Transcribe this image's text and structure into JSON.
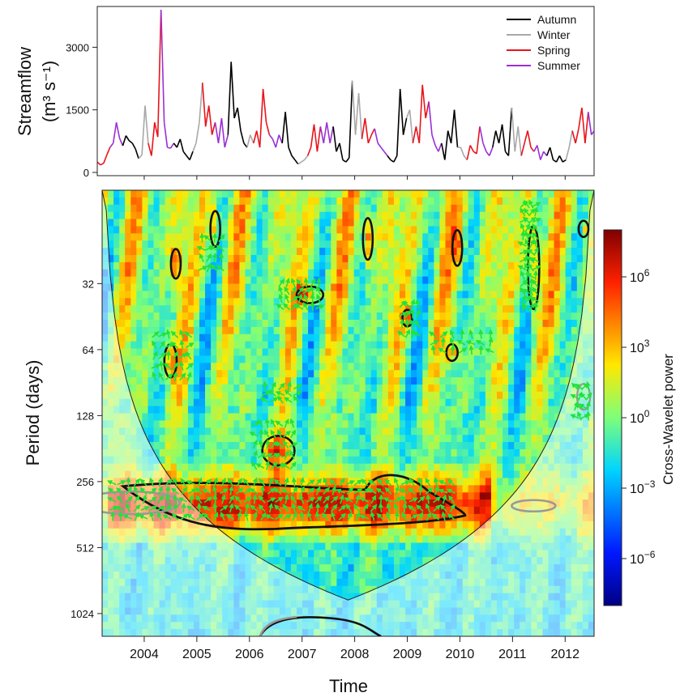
{
  "chart_data": [
    {
      "type": "line",
      "ylabel_line1": "Streamflow",
      "ylabel_line2": "(m³ s⁻¹)",
      "ylim": [
        0,
        3900
      ],
      "yticks": [
        "0",
        "1500",
        "3000"
      ],
      "ytick_values": [
        0,
        1500,
        3000
      ],
      "xlim": [
        2003.2,
        2012.55
      ],
      "legend_position": "top-right",
      "series": [
        {
          "name": "Autumn",
          "color": "#000000"
        },
        {
          "name": "Winter",
          "color": "#a8a8a8"
        },
        {
          "name": "Spring",
          "color": "#e8141b"
        },
        {
          "name": "Summer",
          "color": "#9a2fd6"
        }
      ],
      "flow": [
        [
          2003.2,
          250
        ],
        [
          2003.26,
          180
        ],
        [
          2003.32,
          220
        ],
        [
          2003.38,
          420
        ],
        [
          2003.44,
          600
        ],
        [
          2003.5,
          700
        ],
        [
          2003.56,
          1200
        ],
        [
          2003.62,
          820
        ],
        [
          2003.68,
          640
        ],
        [
          2003.74,
          880
        ],
        [
          2003.8,
          760
        ],
        [
          2003.86,
          700
        ],
        [
          2003.92,
          560
        ],
        [
          2003.98,
          330
        ],
        [
          2004.04,
          420
        ],
        [
          2004.1,
          1600
        ],
        [
          2004.16,
          700
        ],
        [
          2004.22,
          400
        ],
        [
          2004.28,
          1200
        ],
        [
          2004.34,
          850
        ],
        [
          2004.4,
          3900
        ],
        [
          2004.46,
          1200
        ],
        [
          2004.52,
          600
        ],
        [
          2004.58,
          580
        ],
        [
          2004.64,
          700
        ],
        [
          2004.7,
          600
        ],
        [
          2004.76,
          800
        ],
        [
          2004.82,
          500
        ],
        [
          2004.88,
          400
        ],
        [
          2004.94,
          300
        ],
        [
          2005.0,
          500
        ],
        [
          2005.06,
          700
        ],
        [
          2005.12,
          1200
        ],
        [
          2005.18,
          2150
        ],
        [
          2005.24,
          1100
        ],
        [
          2005.3,
          1600
        ],
        [
          2005.36,
          900
        ],
        [
          2005.42,
          1200
        ],
        [
          2005.48,
          700
        ],
        [
          2005.54,
          1300
        ],
        [
          2005.6,
          600
        ],
        [
          2005.66,
          900
        ],
        [
          2005.72,
          2650
        ],
        [
          2005.78,
          1300
        ],
        [
          2005.84,
          1550
        ],
        [
          2005.9,
          1000
        ],
        [
          2005.96,
          700
        ],
        [
          2006.02,
          600
        ],
        [
          2006.08,
          900
        ],
        [
          2006.14,
          700
        ],
        [
          2006.2,
          1000
        ],
        [
          2006.26,
          600
        ],
        [
          2006.32,
          2000
        ],
        [
          2006.38,
          1200
        ],
        [
          2006.44,
          900
        ],
        [
          2006.5,
          800
        ],
        [
          2006.56,
          600
        ],
        [
          2006.62,
          900
        ],
        [
          2006.68,
          700
        ],
        [
          2006.74,
          1450
        ],
        [
          2006.8,
          600
        ],
        [
          2006.86,
          400
        ],
        [
          2006.92,
          300
        ],
        [
          2006.98,
          200
        ],
        [
          2007.04,
          250
        ],
        [
          2007.1,
          300
        ],
        [
          2007.16,
          400
        ],
        [
          2007.22,
          600
        ],
        [
          2007.28,
          1150
        ],
        [
          2007.34,
          500
        ],
        [
          2007.4,
          1100
        ],
        [
          2007.46,
          700
        ],
        [
          2007.52,
          1200
        ],
        [
          2007.58,
          700
        ],
        [
          2007.64,
          1100
        ],
        [
          2007.7,
          500
        ],
        [
          2007.76,
          700
        ],
        [
          2007.82,
          300
        ],
        [
          2007.88,
          250
        ],
        [
          2007.94,
          350
        ],
        [
          2008.0,
          2200
        ],
        [
          2008.06,
          900
        ],
        [
          2008.12,
          1900
        ],
        [
          2008.18,
          800
        ],
        [
          2008.24,
          1300
        ],
        [
          2008.3,
          700
        ],
        [
          2008.36,
          900
        ],
        [
          2008.42,
          1050
        ],
        [
          2008.48,
          700
        ],
        [
          2008.54,
          600
        ],
        [
          2008.6,
          500
        ],
        [
          2008.66,
          400
        ],
        [
          2008.72,
          300
        ],
        [
          2008.78,
          250
        ],
        [
          2008.84,
          400
        ],
        [
          2008.9,
          2000
        ],
        [
          2008.96,
          900
        ],
        [
          2009.02,
          1300
        ],
        [
          2009.08,
          1500
        ],
        [
          2009.14,
          700
        ],
        [
          2009.2,
          1100
        ],
        [
          2009.26,
          700
        ],
        [
          2009.32,
          2100
        ],
        [
          2009.38,
          1300
        ],
        [
          2009.44,
          1700
        ],
        [
          2009.5,
          900
        ],
        [
          2009.56,
          650
        ],
        [
          2009.62,
          500
        ],
        [
          2009.68,
          700
        ],
        [
          2009.74,
          300
        ],
        [
          2009.8,
          1000
        ],
        [
          2009.86,
          700
        ],
        [
          2009.92,
          1500
        ],
        [
          2009.98,
          600
        ],
        [
          2010.04,
          600
        ],
        [
          2010.1,
          400
        ],
        [
          2010.16,
          300
        ],
        [
          2010.22,
          650
        ],
        [
          2010.28,
          500
        ],
        [
          2010.34,
          450
        ],
        [
          2010.4,
          1100
        ],
        [
          2010.46,
          700
        ],
        [
          2010.52,
          500
        ],
        [
          2010.58,
          400
        ],
        [
          2010.64,
          600
        ],
        [
          2010.7,
          1000
        ],
        [
          2010.76,
          700
        ],
        [
          2010.82,
          1150
        ],
        [
          2010.88,
          500
        ],
        [
          2010.94,
          400
        ],
        [
          2011.0,
          1550
        ],
        [
          2011.06,
          500
        ],
        [
          2011.12,
          1100
        ],
        [
          2011.18,
          400
        ],
        [
          2011.24,
          700
        ],
        [
          2011.3,
          1000
        ],
        [
          2011.36,
          600
        ],
        [
          2011.42,
          500
        ],
        [
          2011.48,
          650
        ],
        [
          2011.54,
          300
        ],
        [
          2011.6,
          500
        ],
        [
          2011.66,
          400
        ],
        [
          2011.72,
          600
        ],
        [
          2011.78,
          300
        ],
        [
          2011.84,
          250
        ],
        [
          2011.9,
          400
        ],
        [
          2011.96,
          250
        ],
        [
          2012.02,
          300
        ],
        [
          2012.08,
          600
        ],
        [
          2012.14,
          1000
        ],
        [
          2012.2,
          700
        ],
        [
          2012.26,
          1050
        ],
        [
          2012.32,
          1550
        ],
        [
          2012.38,
          700
        ],
        [
          2012.44,
          1450
        ],
        [
          2012.5,
          900
        ],
        [
          2012.55,
          1000
        ]
      ]
    },
    {
      "type": "heatmap",
      "xlabel": "Time",
      "ylabel": "Period (days)",
      "xlim": [
        2003.2,
        2012.55
      ],
      "xticks": [
        "2004",
        "2005",
        "2006",
        "2007",
        "2008",
        "2009",
        "2010",
        "2011",
        "2012"
      ],
      "xtick_values": [
        2004,
        2005,
        2006,
        2007,
        2008,
        2009,
        2010,
        2011,
        2012
      ],
      "y_scale": "log2",
      "ylim": [
        1300,
        12
      ],
      "yticks": [
        "32",
        "64",
        "128",
        "256",
        "512",
        "1024"
      ],
      "ytick_values": [
        32,
        64,
        128,
        256,
        512,
        1024
      ],
      "colorbar": {
        "label": "Cross-Wavelet power",
        "scale": "log10",
        "range": [
          -8,
          8
        ],
        "ticks": [
          {
            "base": "10",
            "exp": "6",
            "value": 6
          },
          {
            "base": "10",
            "exp": "3",
            "value": 3
          },
          {
            "base": "10",
            "exp": "0",
            "value": 0
          },
          {
            "base": "10",
            "exp": "−3",
            "value": -3
          },
          {
            "base": "10",
            "exp": "−6",
            "value": -6
          }
        ]
      },
      "significant_regions": [
        {
          "cx": 2004.6,
          "period": 26,
          "w": 0.1,
          "h": 0.25
        },
        {
          "cx": 2005.35,
          "period": 18,
          "w": 0.06,
          "h": 0.3
        },
        {
          "cx": 2007.15,
          "period": 36,
          "w": 0.28,
          "h": 0.14
        },
        {
          "cx": 2008.25,
          "period": 20,
          "w": 0.08,
          "h": 0.35
        },
        {
          "cx": 2009.95,
          "period": 22,
          "w": 0.06,
          "h": 0.3
        },
        {
          "cx": 2011.4,
          "period": 27,
          "w": 0.12,
          "h": 0.7
        },
        {
          "cx": 2012.35,
          "period": 18,
          "w": 0.05,
          "h": 0.1
        },
        {
          "cx": 2004.5,
          "period": 72,
          "w": 0.13,
          "h": 0.28
        },
        {
          "cx": 2009.0,
          "period": 46,
          "w": 0.07,
          "h": 0.14
        },
        {
          "cx": 2009.85,
          "period": 66,
          "w": 0.12,
          "h": 0.14
        },
        {
          "cx": 2006.55,
          "period": 185,
          "w": 0.34,
          "h": 0.25
        }
      ],
      "main_band": {
        "t0": 2003.6,
        "t1": 2010.1,
        "p_top": 260,
        "p_bottom": 400
      },
      "arrow_regions": [
        [
          2003.4,
          2010.0,
          260,
          390,
          0.15,
          0.13
        ],
        [
          2004.2,
          2004.9,
          55,
          88,
          0.13,
          0.16
        ],
        [
          2006.1,
          2006.9,
          140,
          220,
          0.12,
          0.16
        ],
        [
          2006.6,
          2007.4,
          32,
          44,
          0.12,
          0.12
        ],
        [
          2006.3,
          2007.0,
          95,
          110,
          0.15,
          0.1
        ],
        [
          2008.9,
          2009.2,
          40,
          55,
          0.1,
          0.15
        ],
        [
          2009.5,
          2010.6,
          55,
          70,
          0.18,
          0.12
        ],
        [
          2011.2,
          2011.5,
          14,
          44,
          0.08,
          0.12
        ],
        [
          2005.1,
          2005.5,
          20,
          30,
          0.12,
          0.15
        ],
        [
          2012.2,
          2012.45,
          95,
          130,
          0.08,
          0.15
        ]
      ]
    }
  ]
}
